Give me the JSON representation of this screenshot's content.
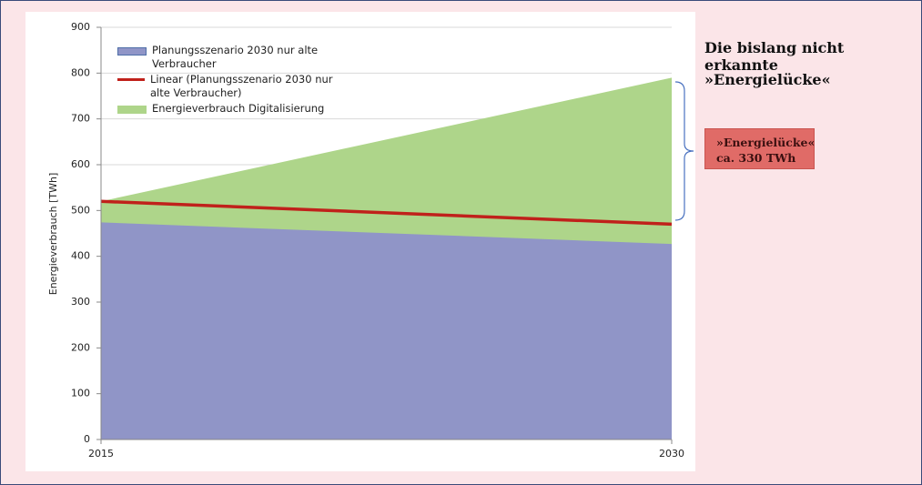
{
  "chart_data": {
    "type": "area",
    "y_label": "Energieverbrauch [TWh]",
    "x": [
      2015,
      2030
    ],
    "xlim": [
      2015,
      2030
    ],
    "xticks": [
      2015,
      2030
    ],
    "ylim": [
      0,
      900
    ],
    "yticks": [
      0,
      100,
      200,
      300,
      400,
      500,
      600,
      700,
      800,
      900
    ],
    "grid": true,
    "series": [
      {
        "name": "Planungsszenario 2030 nur alte Verbraucher",
        "type": "area",
        "color": "#9095c7",
        "values": [
          474,
          427
        ]
      },
      {
        "name": "Linear (Planungsszenario 2030 nur alte Verbraucher)",
        "type": "line",
        "color": "#c0211b",
        "values": [
          520,
          470
        ]
      },
      {
        "name": "Energieverbrauch Digitalisierung",
        "type": "area",
        "color": "#aed58a",
        "values": [
          520,
          790
        ]
      }
    ],
    "annotation_title": [
      "Die bislang nicht erkannte",
      "»Energielücke«"
    ],
    "annotation_box": [
      "»Energielücke«",
      "ca. 330 TWh"
    ]
  }
}
